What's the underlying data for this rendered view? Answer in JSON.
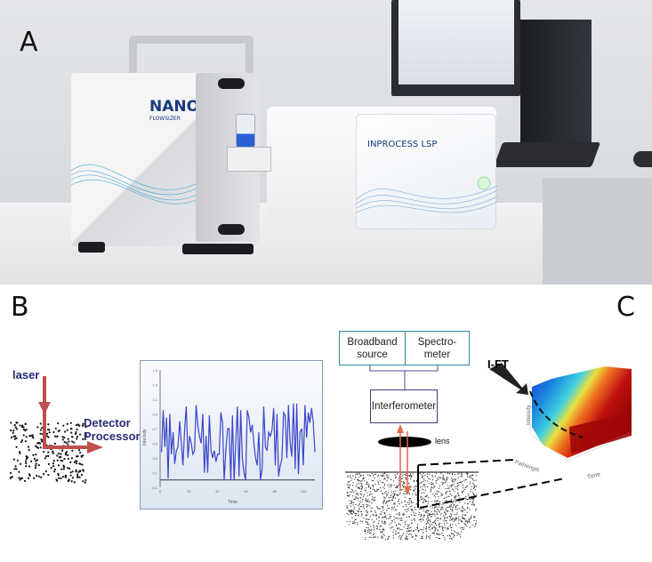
{
  "panels": {
    "a": "A",
    "b": "B",
    "c": "C"
  },
  "photo": {
    "brand_left": {
      "line1": "NANO",
      "line2": "FLOWSIZER"
    },
    "brand_right": "INPROCESS LSP"
  },
  "panel_b": {
    "laser_label": "laser",
    "detector_label": "Detector",
    "processor_label": "Processor",
    "arrow_color": "#c0504d"
  },
  "chart_data": {
    "type": "line",
    "title": "",
    "xlabel": "Time",
    "ylabel": "Intensity",
    "xlim": [
      0,
      108
    ],
    "ylim": [
      -0.1,
      1.5
    ],
    "x_ticks": [
      "0",
      "20",
      "40",
      "60",
      "80",
      "100"
    ],
    "y_ticks": [
      "1.5",
      "1.3",
      "1.1",
      "0.9",
      "0.7",
      "0.5",
      "0.3",
      "0.1",
      "-0.1"
    ],
    "grid": false,
    "line_color": "#3a45c8",
    "values": [
      0.38,
      0.95,
      0.45,
      0.85,
      0.02,
      0.9,
      0.35,
      0.65,
      0.22,
      0.4,
      0.45,
      0.8,
      0.5,
      0.2,
      0.7,
      1.0,
      0.3,
      0.6,
      0.5,
      0.35,
      0.4,
      1.02,
      0.75,
      0.6,
      0.5,
      0.9,
      0.1,
      0.6,
      0.1,
      0.88,
      0.4,
      0.3,
      0.4,
      0.25,
      0.35,
      0.35,
      0.92,
      0.78,
      0.0,
      0.4,
      0.7,
      0.7,
      0.0,
      0.88,
      0.0,
      0.5,
      1.0,
      0.05,
      0.95,
      0.3,
      0.1,
      0.0,
      0.95,
      0.85,
      0.65,
      0.75,
      0.5,
      0.3,
      0.2,
      0.65,
      0.0,
      0.15,
      1.0,
      0.45,
      0.4,
      0.65,
      0.6,
      0.68,
      0.98,
      0.2,
      0.9,
      0.05,
      0.2,
      0.28,
      0.92,
      0.88,
      0.3,
      1.02,
      0.5,
      0.32,
      1.04,
      0.15,
      1.04,
      0.08,
      0.65,
      0.7,
      0.2,
      1.02,
      0.58,
      0.92,
      0.78,
      0.98,
      0.8,
      0.38
    ]
  },
  "panel_c": {
    "broadband": {
      "line1": "Broadband",
      "line2": "source"
    },
    "spectrometer": {
      "line1": "Spectro-",
      "line2": "meter"
    },
    "interferometer": "Interferometer",
    "lens": "lens",
    "ift": "I-FT",
    "plot3d": {
      "z_label": "Intensity",
      "y_label": "Pathlength",
      "x_label": "Time"
    },
    "beam_color": "#e0694a"
  }
}
